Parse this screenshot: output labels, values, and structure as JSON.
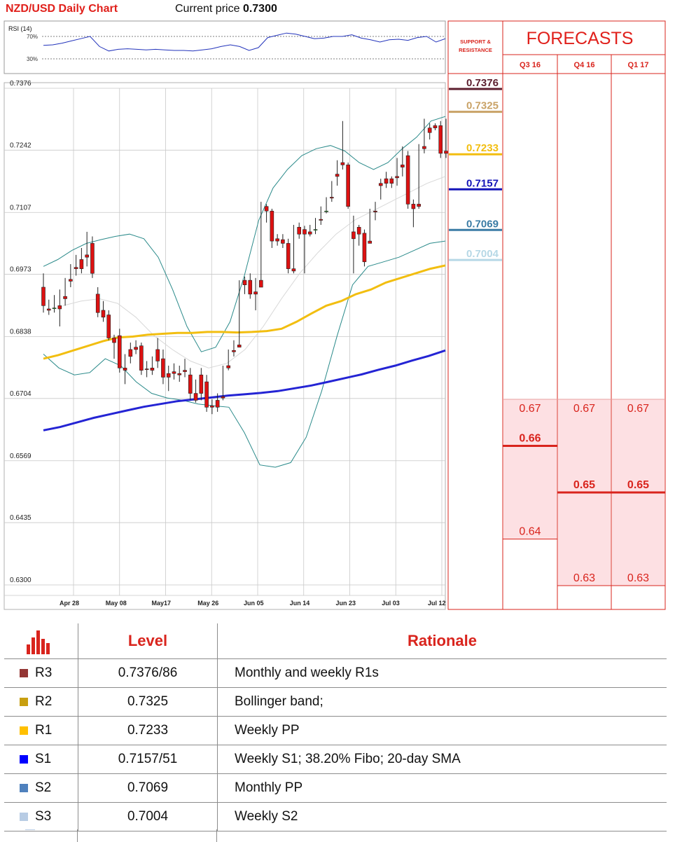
{
  "header": {
    "title": "NZD/USD Daily Chart",
    "price_label": "Current price",
    "price_value": "0.7300"
  },
  "chart_data": {
    "type": "candlestick",
    "title": "NZD/USD Daily Chart",
    "y_ticks": [
      "0.7376",
      "0.7242",
      "0.7107",
      "0.6973",
      "0.6838",
      "0.6704",
      "0.6569",
      "0.6435",
      "0.6300"
    ],
    "x_ticks": [
      "Apr 28",
      "May 08",
      "May17",
      "May 26",
      "Jun 05",
      "Jun 14",
      "Jun 23",
      "Jul 03",
      "Jul 12"
    ],
    "ylim": [
      0.63,
      0.7376
    ],
    "grid": true,
    "candles": [
      [
        0.6945,
        0.6975,
        0.6905,
        0.689
      ],
      [
        0.6898,
        0.6918,
        0.6895,
        0.6885
      ],
      [
        0.69,
        0.6928,
        0.69,
        0.689
      ],
      [
        0.6905,
        0.694,
        0.6898,
        0.686
      ],
      [
        0.6925,
        0.6965,
        0.692,
        0.6905
      ],
      [
        0.6962,
        0.6995,
        0.6958,
        0.6945
      ],
      [
        0.6988,
        0.7015,
        0.6985,
        0.697
      ],
      [
        0.7005,
        0.703,
        0.6985,
        0.6975
      ],
      [
        0.7015,
        0.7065,
        0.701,
        0.699
      ],
      [
        0.704,
        0.7055,
        0.6975,
        0.6965
      ],
      [
        0.693,
        0.6945,
        0.689,
        0.688
      ],
      [
        0.6895,
        0.6915,
        0.688,
        0.687
      ],
      [
        0.6885,
        0.6895,
        0.6835,
        0.683
      ],
      [
        0.6835,
        0.6842,
        0.6825,
        0.679
      ],
      [
        0.684,
        0.6855,
        0.677,
        0.676
      ],
      [
        0.677,
        0.68,
        0.6765,
        0.6735
      ],
      [
        0.681,
        0.6825,
        0.6795,
        0.678
      ],
      [
        0.6815,
        0.683,
        0.681,
        0.68
      ],
      [
        0.6818,
        0.6825,
        0.6765,
        0.6755
      ],
      [
        0.6768,
        0.6785,
        0.6767,
        0.675
      ],
      [
        0.677,
        0.6795,
        0.6765,
        0.6755
      ],
      [
        0.681,
        0.6835,
        0.6785,
        0.677
      ],
      [
        0.679,
        0.681,
        0.675,
        0.6735
      ],
      [
        0.6758,
        0.6775,
        0.675,
        0.672
      ],
      [
        0.6762,
        0.678,
        0.6758,
        0.6745
      ],
      [
        0.6758,
        0.6775,
        0.6755,
        0.674
      ],
      [
        0.6765,
        0.679,
        0.6762,
        0.675
      ],
      [
        0.6755,
        0.677,
        0.6715,
        0.67
      ],
      [
        0.6715,
        0.6745,
        0.67,
        0.6695
      ],
      [
        0.6755,
        0.677,
        0.6715,
        0.67
      ],
      [
        0.674,
        0.6755,
        0.6685,
        0.6675
      ],
      [
        0.6688,
        0.6702,
        0.6685,
        0.667
      ],
      [
        0.67,
        0.6715,
        0.6685,
        0.6675
      ],
      [
        0.6708,
        0.6775,
        0.6705,
        0.67
      ],
      [
        0.6775,
        0.681,
        0.677,
        0.6765
      ],
      [
        0.6808,
        0.683,
        0.6805,
        0.6795
      ],
      [
        0.682,
        0.696,
        0.6815,
        0.6815
      ],
      [
        0.696,
        0.6968,
        0.695,
        0.693
      ],
      [
        0.696,
        0.6975,
        0.693,
        0.692
      ],
      [
        0.6935,
        0.6965,
        0.693,
        0.6895
      ],
      [
        0.696,
        0.713,
        0.6945,
        0.6945
      ],
      [
        0.712,
        0.7125,
        0.711,
        0.7085
      ],
      [
        0.711,
        0.7115,
        0.7045,
        0.703
      ],
      [
        0.705,
        0.706,
        0.7045,
        0.7035
      ],
      [
        0.7048,
        0.706,
        0.704,
        0.703
      ],
      [
        0.704,
        0.705,
        0.6985,
        0.6975
      ],
      [
        0.6985,
        0.708,
        0.698,
        0.6975
      ],
      [
        0.7075,
        0.7085,
        0.706,
        0.705
      ],
      [
        0.707,
        0.7078,
        0.706,
        0.6975
      ],
      [
        0.7065,
        0.708,
        0.706,
        0.7055
      ],
      [
        0.707,
        0.7095,
        0.707,
        0.706
      ],
      [
        0.7092,
        0.712,
        0.709,
        0.708
      ],
      [
        0.711,
        0.714,
        0.711,
        0.7105
      ],
      [
        0.714,
        0.7175,
        0.7138,
        0.713
      ],
      [
        0.719,
        0.722,
        0.7185,
        0.7165
      ],
      [
        0.7215,
        0.7305,
        0.721,
        0.72
      ],
      [
        0.721,
        0.7215,
        0.712,
        0.7115
      ],
      [
        0.7065,
        0.71,
        0.705,
        0.6975
      ],
      [
        0.7075,
        0.708,
        0.706,
        0.7035
      ],
      [
        0.7062,
        0.707,
        0.7,
        0.699
      ],
      [
        0.7045,
        0.7115,
        0.704,
        0.704
      ],
      [
        0.711,
        0.713,
        0.7108,
        0.709
      ],
      [
        0.717,
        0.718,
        0.7165,
        0.7135
      ],
      [
        0.718,
        0.7195,
        0.717,
        0.716
      ],
      [
        0.718,
        0.7185,
        0.717,
        0.716
      ],
      [
        0.7185,
        0.7225,
        0.7182,
        0.7165
      ],
      [
        0.721,
        0.725,
        0.7205,
        0.7185
      ],
      [
        0.723,
        0.724,
        0.7125,
        0.7115
      ],
      [
        0.7125,
        0.7135,
        0.7115,
        0.7075
      ],
      [
        0.7125,
        0.7255,
        0.712,
        0.7115
      ],
      [
        0.725,
        0.731,
        0.7245,
        0.7235
      ],
      [
        0.729,
        0.73,
        0.728,
        0.7265
      ],
      [
        0.7295,
        0.73,
        0.729,
        0.7285
      ],
      [
        0.7295,
        0.7305,
        0.7235,
        0.7225
      ],
      [
        0.724,
        0.731,
        0.7235,
        0.7225
      ]
    ],
    "sma_yellow": [
      0.679,
      0.6798,
      0.6808,
      0.6818,
      0.6828,
      0.6836,
      0.6838,
      0.6842,
      0.6844,
      0.6846,
      0.6846,
      0.6848,
      0.6848,
      0.6847,
      0.6848,
      0.685,
      0.6855,
      0.687,
      0.6888,
      0.6905,
      0.6915,
      0.693,
      0.694,
      0.6955,
      0.6965,
      0.6975,
      0.6985,
      0.6992
    ],
    "sma_blue": [
      0.6635,
      0.6642,
      0.6652,
      0.6662,
      0.667,
      0.6678,
      0.6686,
      0.6692,
      0.6698,
      0.6702,
      0.6706,
      0.671,
      0.6713,
      0.6716,
      0.672,
      0.6726,
      0.6732,
      0.674,
      0.6748,
      0.6756,
      0.6766,
      0.6775,
      0.6786,
      0.6796,
      0.6808
    ],
    "bb_upper": [
      0.699,
      0.7005,
      0.7025,
      0.704,
      0.7048,
      0.7055,
      0.706,
      0.705,
      0.701,
      0.694,
      0.686,
      0.6805,
      0.6815,
      0.687,
      0.697,
      0.709,
      0.716,
      0.72,
      0.723,
      0.7245,
      0.7252,
      0.724,
      0.7215,
      0.72,
      0.7215,
      0.7245,
      0.727,
      0.7305,
      0.7315
    ],
    "bb_lower": [
      0.68,
      0.677,
      0.6755,
      0.676,
      0.679,
      0.6775,
      0.674,
      0.6715,
      0.6705,
      0.67,
      0.6692,
      0.6688,
      0.6685,
      0.663,
      0.656,
      0.6555,
      0.6565,
      0.662,
      0.672,
      0.684,
      0.695,
      0.699,
      0.7,
      0.701,
      0.7025,
      0.704,
      0.7045
    ],
    "bb_mid": [
      0.6905,
      0.6915,
      0.692,
      0.691,
      0.688,
      0.684,
      0.681,
      0.6785,
      0.677,
      0.678,
      0.681,
      0.686,
      0.692,
      0.6975,
      0.702,
      0.706,
      0.709,
      0.711,
      0.713,
      0.715,
      0.717,
      0.7185
    ],
    "rsi": {
      "label": "RSI (14)",
      "levels": [
        "70%",
        "30%"
      ],
      "values": [
        54,
        55,
        58,
        62,
        66,
        70,
        52,
        44,
        47,
        48,
        47,
        46,
        47,
        46,
        45,
        45,
        44,
        46,
        48,
        52,
        55,
        52,
        45,
        50,
        68,
        72,
        76,
        74,
        70,
        66,
        67,
        70,
        70,
        73,
        67,
        64,
        60,
        64,
        65,
        63,
        68,
        70,
        60,
        66
      ]
    }
  },
  "sr_panel": {
    "title_line1": "SUPPORT &",
    "title_line2": "RESISTANCE",
    "levels": [
      {
        "name": "R3",
        "value": "0.7376",
        "price": 0.7376,
        "color": "#5c1e2e"
      },
      {
        "name": "R2",
        "value": "0.7325",
        "price": 0.7325,
        "color": "#c9a266"
      },
      {
        "name": "R1",
        "value": "0.7233",
        "price": 0.7233,
        "color": "#f2be10"
      },
      {
        "name": "S1",
        "value": "0.7157",
        "price": 0.7157,
        "color": "#1414b8"
      },
      {
        "name": "S2",
        "value": "0.7069",
        "price": 0.7069,
        "color": "#3a7ca5"
      },
      {
        "name": "S3",
        "value": "0.7004",
        "price": 0.7004,
        "color": "#b6d8e6"
      }
    ]
  },
  "forecasts": {
    "title": "FORECASTS",
    "columns": [
      {
        "quarter": "Q3 16",
        "high": "0.67",
        "mid": "0.66",
        "low": "0.64",
        "high_v": 0.67,
        "mid_v": 0.66,
        "low_v": 0.64
      },
      {
        "quarter": "Q4 16",
        "high": "0.67",
        "mid": "0.65",
        "low": "0.63",
        "high_v": 0.67,
        "mid_v": 0.65,
        "low_v": 0.63
      },
      {
        "quarter": "Q1 17",
        "high": "0.67",
        "mid": "0.65",
        "low": "0.63",
        "high_v": 0.67,
        "mid_v": 0.65,
        "low_v": 0.63
      }
    ]
  },
  "table": {
    "header_level": "Level",
    "header_rationale": "Rationale",
    "rows": [
      {
        "name": "R3",
        "level": "0.7376/86",
        "rationale": "Monthly and weekly R1s",
        "color": "#943634"
      },
      {
        "name": "R2",
        "level": "0.7325",
        "rationale": "Bollinger band;",
        "color": "#c89f10"
      },
      {
        "name": "R1",
        "level": "0.7233",
        "rationale": "Weekly PP",
        "color": "#ffc000"
      },
      {
        "name": "S1",
        "level": "0.7157/51",
        "rationale": "Weekly S1; 38.20% Fibo; 20-day SMA",
        "color": "#0000ff"
      },
      {
        "name": "S2",
        "level": "0.7069",
        "rationale": "Monthly PP",
        "color": "#4f81bd"
      },
      {
        "name": "S3",
        "level": "0.7004",
        "rationale": "Weekly S2",
        "color": "#b8cce4"
      }
    ]
  }
}
